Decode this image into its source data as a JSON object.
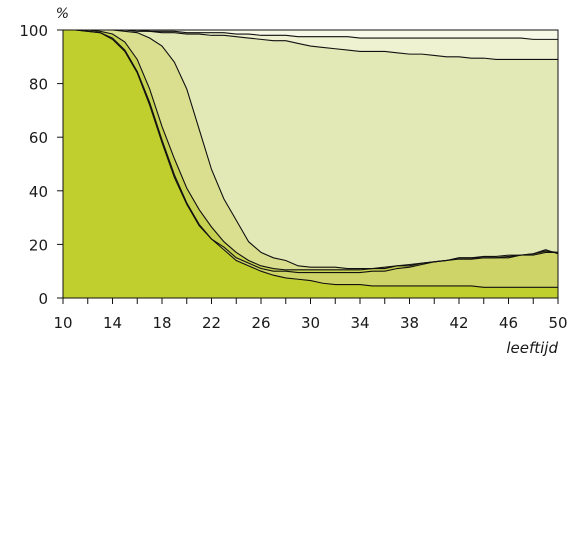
{
  "chart_data": {
    "type": "area",
    "stacked": true,
    "title": "",
    "xlabel": "leeftijd",
    "ylabel": "%",
    "xlim": [
      10,
      50
    ],
    "ylim": [
      0,
      100
    ],
    "x_ticks": [
      10,
      14,
      18,
      22,
      26,
      30,
      34,
      38,
      42,
      46,
      50
    ],
    "y_ticks": [
      0,
      20,
      40,
      60,
      80,
      100
    ],
    "grid": false,
    "legend": "none",
    "x": [
      10,
      11,
      12,
      13,
      14,
      15,
      16,
      17,
      18,
      19,
      20,
      21,
      22,
      23,
      24,
      25,
      26,
      27,
      28,
      29,
      30,
      31,
      32,
      33,
      34,
      35,
      36,
      37,
      38,
      39,
      40,
      41,
      42,
      43,
      44,
      45,
      46,
      47,
      48,
      49,
      50
    ],
    "boundaries": [
      [
        100,
        100,
        99.5,
        99,
        96.5,
        92,
        84,
        72,
        58,
        45,
        35,
        27,
        22,
        18,
        14,
        12,
        10,
        8.5,
        7.5,
        7,
        6.5,
        5.5,
        5,
        5,
        5,
        4.5,
        4.5,
        4.5,
        4.5,
        4.5,
        4.5,
        4.5,
        4.5,
        4.5,
        4,
        4,
        4,
        4,
        4,
        4,
        4
      ],
      [
        100,
        100,
        99.5,
        99,
        97,
        92.5,
        84.5,
        73,
        59,
        46,
        35.5,
        27.5,
        22,
        19,
        15,
        13,
        11,
        10,
        10,
        9.5,
        9.5,
        9.5,
        9.5,
        9.5,
        9.5,
        10,
        10,
        11,
        11.5,
        12.5,
        13.5,
        14,
        14.5,
        14.5,
        15,
        15,
        15,
        16,
        16,
        17,
        17
      ],
      [
        100,
        100,
        100,
        99.5,
        98.5,
        95.5,
        89,
        78,
        64,
        52,
        41,
        33,
        26.5,
        21,
        17,
        14,
        12,
        11,
        10.5,
        10.5,
        10.5,
        10.5,
        10.5,
        10.5,
        10.5,
        11,
        11,
        12,
        12.5,
        13,
        13.5,
        14,
        15,
        15,
        15,
        15,
        15.5,
        16,
        16.5,
        18,
        16.5
      ],
      [
        100,
        100,
        100,
        100,
        100,
        99.5,
        99,
        97,
        94,
        88,
        78,
        63,
        48,
        37,
        29,
        21,
        17,
        15,
        14,
        12,
        11.5,
        11.5,
        11.5,
        11,
        11,
        11,
        11.5,
        12,
        12,
        13,
        13.5,
        14,
        15,
        15,
        15.5,
        15.5,
        16,
        16,
        16.5,
        17.5,
        17
      ],
      [
        100,
        100,
        100,
        100,
        100,
        100,
        99.5,
        99.5,
        99,
        99,
        98.5,
        98.5,
        98,
        98,
        97.5,
        97,
        96.5,
        96,
        96,
        95,
        94,
        93.5,
        93,
        92.5,
        92,
        92,
        92,
        91.5,
        91,
        91,
        90.5,
        90,
        90,
        89.5,
        89.5,
        89,
        89,
        89,
        89,
        89,
        89
      ],
      [
        100,
        100,
        100,
        100,
        100,
        100,
        100,
        99.5,
        99.5,
        99.5,
        99,
        99,
        99,
        99,
        98.5,
        98.5,
        98,
        98,
        98,
        97.5,
        97.5,
        97.5,
        97.5,
        97.5,
        97,
        97,
        97,
        97,
        97,
        97,
        97,
        97,
        97,
        97,
        97,
        97,
        97,
        97,
        96.5,
        96.5,
        96.5
      ],
      [
        100,
        100,
        100,
        100,
        100,
        100,
        100,
        100,
        100,
        100,
        100,
        100,
        100,
        100,
        100,
        100,
        100,
        100,
        100,
        100,
        100,
        100,
        100,
        100,
        100,
        100,
        100,
        100,
        100,
        100,
        100,
        100,
        100,
        100,
        100,
        100,
        100,
        100,
        100,
        100,
        100
      ]
    ],
    "band_colors": [
      "#c1cf2e",
      "#cfd468",
      "#c7d152",
      "#d9df8f",
      "#e3e9b6",
      "#eef2d0",
      "#f7f9e8"
    ],
    "line_color": "#111111"
  }
}
